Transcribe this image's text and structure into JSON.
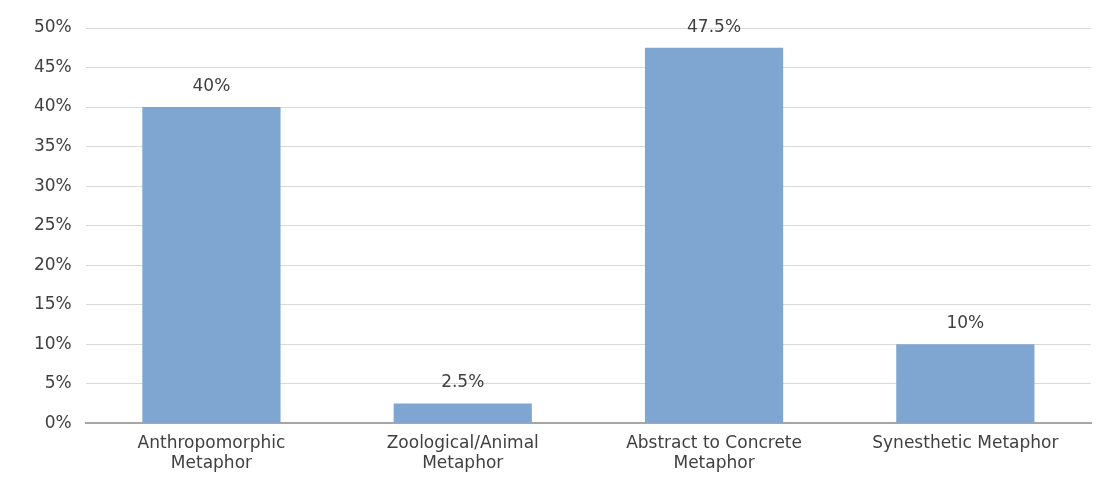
{
  "chart_data": {
    "type": "bar",
    "categories": [
      "Anthropomorphic Metaphor",
      "Zoological/Animal Metaphor",
      "Abstract to Concrete Metaphor",
      "Synesthetic Metaphor"
    ],
    "values": [
      40,
      2.5,
      47.5,
      10
    ],
    "color": "#7fa6d0",
    "value_labels": [
      "40%",
      "2.5%",
      "47.5%",
      "10%"
    ],
    "ylim": [
      0,
      50
    ],
    "yticks": [
      {
        "value": 0,
        "label": "0%"
      },
      {
        "value": 5,
        "label": "5%"
      },
      {
        "value": 10,
        "label": "10%"
      },
      {
        "value": 15,
        "label": "15%"
      },
      {
        "value": 20,
        "label": "20%"
      },
      {
        "value": 25,
        "label": "25%"
      },
      {
        "value": 30,
        "label": "30%"
      },
      {
        "value": 35,
        "label": "35%"
      },
      {
        "value": 40,
        "label": "40%"
      },
      {
        "value": 45,
        "label": "45%"
      },
      {
        "value": 50,
        "label": "50%"
      }
    ],
    "grid": "y"
  }
}
